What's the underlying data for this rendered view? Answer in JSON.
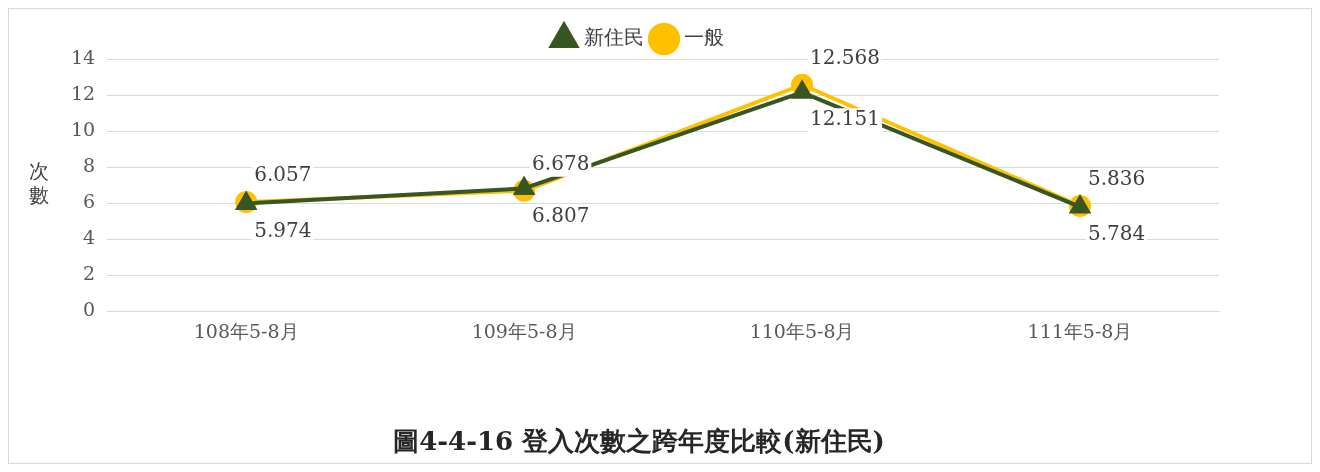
{
  "chart_data": {
    "type": "line",
    "title": "圖4-4-16 登入次數之跨年度比較(新住民)",
    "ylabel": "次數",
    "categories": [
      "108年5-8月",
      "109年5-8月",
      "110年5-8月",
      "111年5-8月"
    ],
    "series": [
      {
        "name": "一般",
        "color": "#ffc000",
        "values": [
          6.057,
          6.678,
          12.568,
          5.836
        ],
        "marker": "circle"
      },
      {
        "name": "新住民",
        "color": "#375623",
        "values": [
          5.974,
          6.807,
          12.151,
          5.784
        ],
        "marker": "triangle"
      }
    ],
    "ylim": [
      0,
      14
    ],
    "yticks": [
      0,
      2,
      4,
      6,
      8,
      10,
      12,
      14
    ],
    "grid": "y",
    "legend": "top",
    "data_labels": true
  }
}
